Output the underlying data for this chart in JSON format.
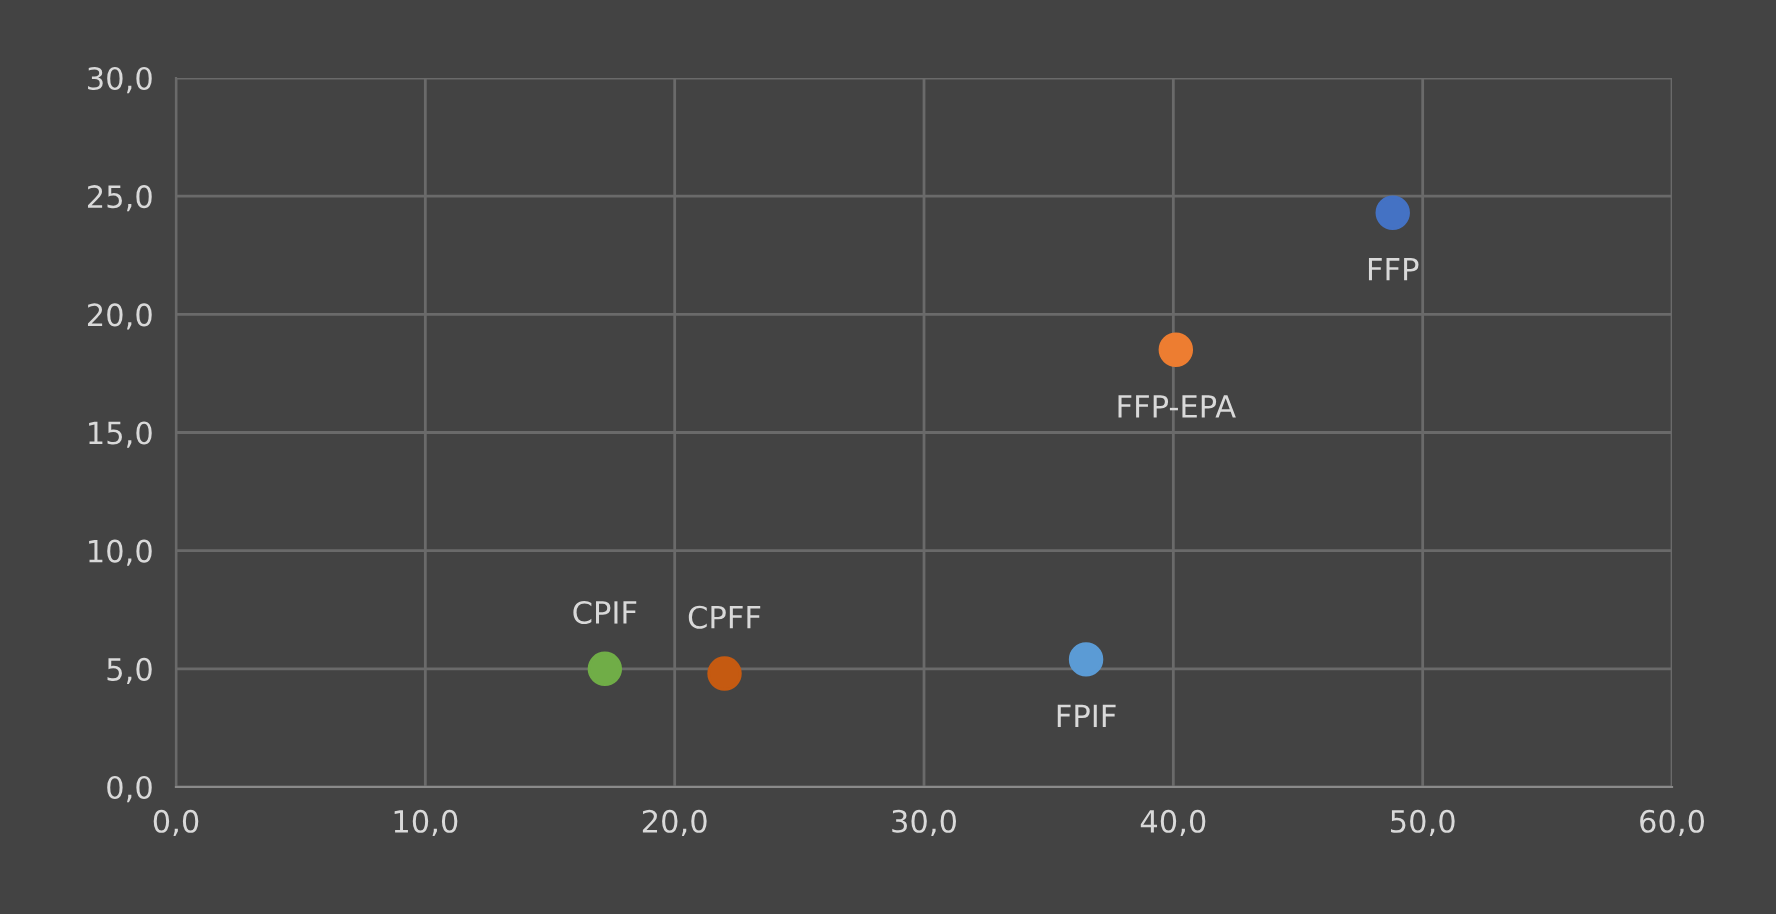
{
  "chart_data": {
    "type": "scatter",
    "series": [
      {
        "name": "FFP",
        "color": "#4472c4",
        "x": [
          48.8
        ],
        "values": [
          24.3
        ]
      },
      {
        "name": "FFP-EPA",
        "color": "#ed7d31",
        "x": [
          40.1
        ],
        "values": [
          18.5
        ]
      },
      {
        "name": "FPIF",
        "color": "#5b9bd5",
        "x": [
          36.5
        ],
        "values": [
          5.4
        ]
      },
      {
        "name": "CPFF",
        "color": "#c55a11",
        "x": [
          22.0
        ],
        "values": [
          4.8
        ]
      },
      {
        "name": "CPIF",
        "color": "#70ad47",
        "x": [
          17.2
        ],
        "values": [
          5.0
        ]
      }
    ],
    "xlim": [
      0,
      60
    ],
    "ylim": [
      0,
      30
    ],
    "xticks": [
      {
        "value": 0,
        "label": "0,0"
      },
      {
        "value": 10,
        "label": "10,0"
      },
      {
        "value": 20,
        "label": "20,0"
      },
      {
        "value": 30,
        "label": "30,0"
      },
      {
        "value": 40,
        "label": "40,0"
      },
      {
        "value": 50,
        "label": "50,0"
      },
      {
        "value": 60,
        "label": "60,0"
      }
    ],
    "yticks": [
      {
        "value": 0,
        "label": "0,0"
      },
      {
        "value": 5,
        "label": "5,0"
      },
      {
        "value": 10,
        "label": "10,0"
      },
      {
        "value": 15,
        "label": "15,0"
      },
      {
        "value": 20,
        "label": "20,0"
      },
      {
        "value": 25,
        "label": "25,0"
      },
      {
        "value": 30,
        "label": "30,0"
      }
    ],
    "grid": true,
    "legend": false,
    "marker": "circle"
  }
}
